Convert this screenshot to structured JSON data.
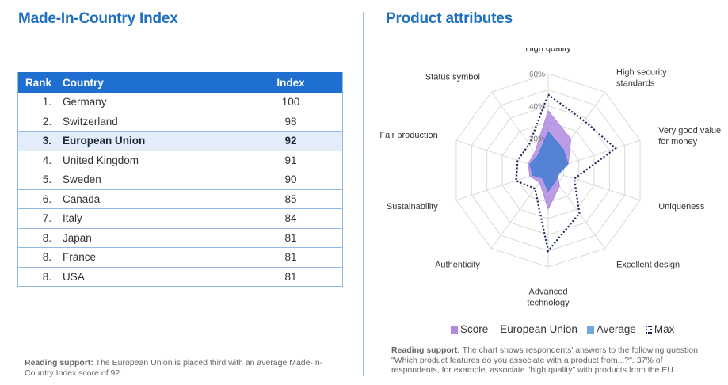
{
  "left": {
    "title": "Made-In-Country Index",
    "table": {
      "headers": {
        "rank": "Rank",
        "country": "Country",
        "index": "Index"
      },
      "rows": [
        {
          "rank": "1.",
          "country": "Germany",
          "index": "100"
        },
        {
          "rank": "2.",
          "country": "Switzerland",
          "index": "98"
        },
        {
          "rank": "3.",
          "country": "European Union",
          "index": "92"
        },
        {
          "rank": "4.",
          "country": "United Kingdom",
          "index": "91"
        },
        {
          "rank": "5.",
          "country": "Sweden",
          "index": "90"
        },
        {
          "rank": "6.",
          "country": "Canada",
          "index": "85"
        },
        {
          "rank": "7.",
          "country": "Italy",
          "index": "84"
        },
        {
          "rank": "8.",
          "country": "Japan",
          "index": "81"
        },
        {
          "rank": "8.",
          "country": "France",
          "index": "81"
        },
        {
          "rank": "8.",
          "country": "USA",
          "index": "81"
        }
      ],
      "highlight_row": 2
    },
    "note": {
      "label": "Reading support:",
      "text": " The European Union is placed third with an average Made-In-Country Index score of 92."
    }
  },
  "right": {
    "title": "Product attributes",
    "note": {
      "label": "Reading support:",
      "text": " The chart shows respondents' answers to the following question: \"Which product features do you associate with a product from...?\". 37% of respondents, for example, associate \"high quality\" with products from the EU."
    }
  },
  "colors": {
    "title": "#1f6fbf",
    "header_bg": "#1f6fd0",
    "score": "#b08be0",
    "average": "#4a7fd4",
    "max": "#1a2a5e",
    "grid": "#d9d9d9"
  },
  "chart_data": {
    "type": "radar",
    "title": "Product attributes",
    "axes": [
      "High quality",
      "High security standards",
      "Very good value for money",
      "Uniqueness",
      "Excellent design",
      "Advanced technology",
      "Authenticity",
      "Sustainability",
      "Fair production",
      "Status symbol"
    ],
    "rlim": [
      0,
      60
    ],
    "ticks": [
      20,
      40,
      60
    ],
    "tick_labels": [
      "20%",
      "40%",
      "60%"
    ],
    "series": [
      {
        "name": "Score – European Union",
        "values": [
          37,
          24,
          13,
          6,
          12,
          24,
          9,
          12,
          13,
          14
        ]
      },
      {
        "name": "Average",
        "values": [
          24,
          16,
          13,
          7,
          8,
          13,
          6,
          10,
          12,
          11
        ]
      },
      {
        "name": "Max",
        "values": [
          47,
          38,
          44,
          17,
          33,
          50,
          14,
          21,
          20,
          20
        ]
      }
    ],
    "legend": [
      "Score – European Union",
      "Average",
      "Max"
    ],
    "legend_position": "bottom"
  }
}
